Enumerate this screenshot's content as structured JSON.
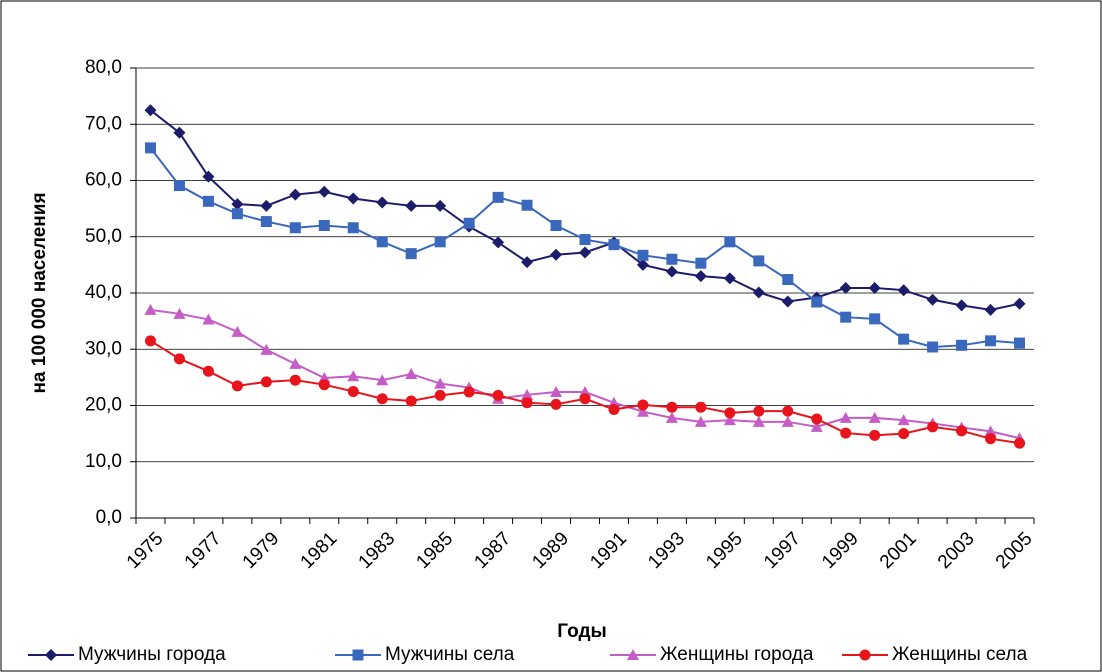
{
  "chart_data": {
    "type": "line",
    "y_label": "на 100 000 населения",
    "x_label": "Годы",
    "categories": [
      "1975",
      null,
      "1977",
      null,
      "1979",
      null,
      "1981",
      null,
      "1983",
      null,
      "1985",
      null,
      "1987",
      null,
      "1989",
      null,
      "1991",
      null,
      "1993",
      null,
      "1995",
      null,
      "1997",
      null,
      "1999",
      null,
      "2001",
      null,
      "2003",
      null,
      "2005"
    ],
    "ylim": [
      0,
      80
    ],
    "yticks": [
      {
        "value": 0,
        "label": "0,0"
      },
      {
        "value": 10,
        "label": "10,0"
      },
      {
        "value": 20,
        "label": "20,0"
      },
      {
        "value": 30,
        "label": "30,0"
      },
      {
        "value": 40,
        "label": "40,0"
      },
      {
        "value": 50,
        "label": "50,0"
      },
      {
        "value": 60,
        "label": "60,0"
      },
      {
        "value": 70,
        "label": "70,0"
      },
      {
        "value": 80,
        "label": "80,0"
      }
    ],
    "grid": true,
    "legend": "bottom",
    "series": [
      {
        "name": "Мужчины города",
        "color": "#1c1c6b",
        "marker": "diamond",
        "values": [
          72.5,
          68.5,
          60.7,
          55.8,
          55.5,
          57.5,
          58,
          56.8,
          56.1,
          55.5,
          55.5,
          51.8,
          49,
          45.5,
          46.8,
          47.2,
          49,
          45,
          43.8,
          43,
          42.6,
          40.1,
          38.5,
          39.2,
          40.9,
          40.9,
          40.5,
          38.8,
          37.8,
          37,
          38.1
        ]
      },
      {
        "name": "Мужчины села",
        "color": "#3a68bd",
        "marker": "square",
        "values": [
          65.8,
          59.1,
          56.3,
          54.1,
          52.7,
          51.6,
          52,
          51.6,
          49.1,
          47,
          49.1,
          52.4,
          57,
          55.6,
          52,
          49.5,
          48.6,
          46.7,
          46,
          45.3,
          49.1,
          45.7,
          42.4,
          38.4,
          35.7,
          35.4,
          31.8,
          30.4,
          30.7,
          31.5,
          31.1
        ]
      },
      {
        "name": "Женщины города",
        "color": "#c65cc6",
        "marker": "triangle",
        "values": [
          37,
          36.3,
          35.3,
          33.1,
          29.9,
          27.4,
          24.9,
          25.2,
          24.5,
          25.6,
          23.9,
          23.2,
          21.2,
          21.9,
          22.4,
          22.4,
          20.5,
          18.9,
          17.8,
          17.1,
          17.4,
          17.1,
          17.1,
          16.2,
          17.8,
          17.8,
          17.4,
          16.8,
          16.1,
          15.4,
          14.2
        ]
      },
      {
        "name": "Женщины села",
        "color": "#e8141c",
        "marker": "circle",
        "values": [
          31.5,
          28.3,
          26.1,
          23.5,
          24.2,
          24.5,
          23.7,
          22.5,
          21.2,
          20.8,
          21.8,
          22.4,
          21.8,
          20.5,
          20.2,
          21.2,
          19.3,
          20.1,
          19.7,
          19.7,
          18.7,
          19,
          19,
          17.6,
          15.1,
          14.7,
          15,
          16.2,
          15.5,
          14.1,
          13.3
        ]
      }
    ]
  }
}
